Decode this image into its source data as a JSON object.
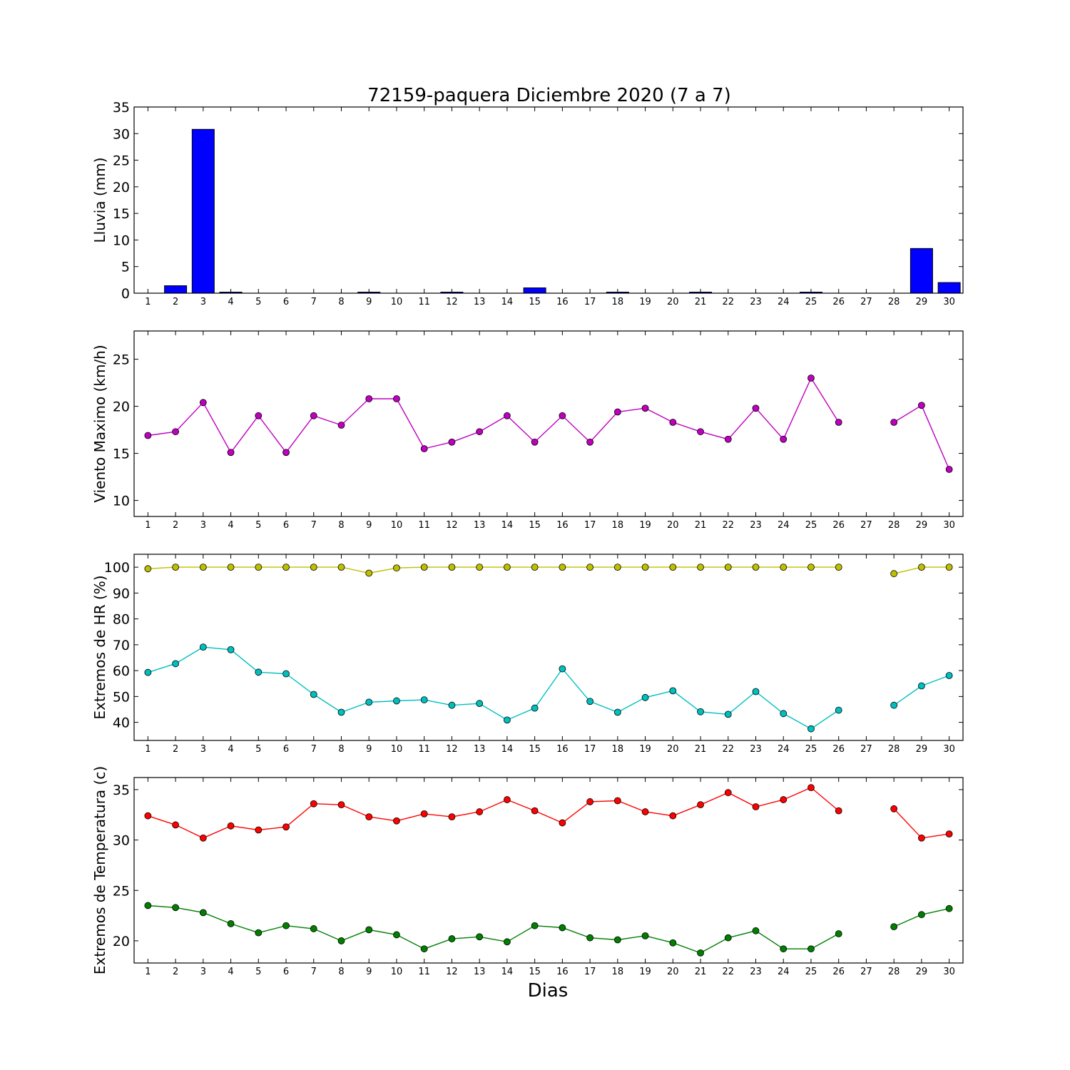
{
  "title": "72159-paquera Diciembre 2020  (7 a 7)",
  "xlabel": "Dias",
  "chart_data": [
    {
      "type": "bar",
      "ylabel": "Lluvia (mm)",
      "ylim": [
        0,
        35
      ],
      "yticks": [
        0,
        5,
        10,
        15,
        20,
        25,
        30,
        35
      ],
      "color": "#0000ff",
      "x": [
        1,
        2,
        3,
        4,
        5,
        6,
        7,
        8,
        9,
        10,
        11,
        12,
        13,
        14,
        15,
        16,
        17,
        18,
        19,
        20,
        21,
        22,
        23,
        24,
        25,
        26,
        27,
        28,
        29,
        30
      ],
      "values": [
        0,
        1.4,
        30.8,
        0.2,
        0,
        0,
        0,
        0,
        0.2,
        0,
        0,
        0.2,
        0,
        0,
        1.0,
        0,
        0,
        0.2,
        0,
        0,
        0.2,
        0,
        0,
        0,
        0.2,
        0,
        0,
        0,
        8.4,
        2.0
      ]
    },
    {
      "type": "line",
      "ylabel": "Viento Maximo (km/h)",
      "ylim": [
        8.3,
        28
      ],
      "yticks": [
        10,
        15,
        20,
        25
      ],
      "x": [
        1,
        2,
        3,
        4,
        5,
        6,
        7,
        8,
        9,
        10,
        11,
        12,
        13,
        14,
        15,
        16,
        17,
        18,
        19,
        20,
        21,
        22,
        23,
        24,
        25,
        26,
        27,
        28,
        29,
        30
      ],
      "series": [
        {
          "color": "#bf00bf",
          "values": [
            16.9,
            17.3,
            20.4,
            15.1,
            19.0,
            15.1,
            19.0,
            18.0,
            20.8,
            20.8,
            15.5,
            16.2,
            17.3,
            19.0,
            16.2,
            19.0,
            16.2,
            19.4,
            19.8,
            18.3,
            17.3,
            16.5,
            19.8,
            16.5,
            23.0,
            18.3,
            null,
            18.3,
            20.1,
            13.3
          ]
        }
      ]
    },
    {
      "type": "line",
      "ylabel": "Extremos de HR (%)",
      "ylim": [
        33,
        105
      ],
      "yticks": [
        40,
        50,
        60,
        70,
        80,
        90,
        100
      ],
      "x": [
        1,
        2,
        3,
        4,
        5,
        6,
        7,
        8,
        9,
        10,
        11,
        12,
        13,
        14,
        15,
        16,
        17,
        18,
        19,
        20,
        21,
        22,
        23,
        24,
        25,
        26,
        27,
        28,
        29,
        30
      ],
      "series": [
        {
          "color": "#bfbf00",
          "values": [
            99.4,
            100,
            100,
            100,
            100,
            100,
            100,
            100,
            97.7,
            99.7,
            100,
            100,
            100,
            100,
            100,
            100,
            100,
            100,
            100,
            100,
            100,
            100,
            100,
            100,
            100,
            100,
            null,
            97.5,
            100,
            100
          ]
        },
        {
          "color": "#00bfbf",
          "values": [
            59.3,
            62.7,
            69.1,
            68.1,
            59.4,
            58.8,
            50.8,
            43.9,
            47.8,
            48.3,
            48.7,
            46.6,
            47.3,
            40.9,
            45.5,
            60.7,
            48.1,
            43.9,
            49.6,
            52.2,
            44.1,
            43.1,
            51.9,
            43.4,
            37.5,
            44.7,
            null,
            46.6,
            54.1,
            58.1
          ]
        }
      ]
    },
    {
      "type": "line",
      "ylabel": "Extremos de Temperatura (c)",
      "ylim": [
        17.8,
        36.2
      ],
      "yticks": [
        20,
        25,
        30,
        35
      ],
      "x": [
        1,
        2,
        3,
        4,
        5,
        6,
        7,
        8,
        9,
        10,
        11,
        12,
        13,
        14,
        15,
        16,
        17,
        18,
        19,
        20,
        21,
        22,
        23,
        24,
        25,
        26,
        27,
        28,
        29,
        30
      ],
      "series": [
        {
          "color": "#ff0000",
          "values": [
            32.4,
            31.5,
            30.2,
            31.4,
            31.0,
            31.3,
            33.6,
            33.5,
            32.3,
            31.9,
            32.6,
            32.3,
            32.8,
            34.0,
            32.9,
            31.7,
            33.8,
            33.9,
            32.8,
            32.4,
            33.5,
            34.7,
            33.3,
            34.0,
            35.2,
            32.9,
            null,
            33.1,
            30.2,
            30.6
          ]
        },
        {
          "color": "#007f00",
          "values": [
            23.5,
            23.3,
            22.8,
            21.7,
            20.8,
            21.5,
            21.2,
            20.0,
            21.1,
            20.6,
            19.2,
            20.2,
            20.4,
            19.9,
            21.5,
            21.3,
            20.3,
            20.1,
            20.5,
            19.8,
            18.8,
            20.3,
            21.0,
            19.2,
            19.2,
            20.7,
            null,
            21.4,
            22.6,
            23.2
          ]
        }
      ]
    }
  ]
}
